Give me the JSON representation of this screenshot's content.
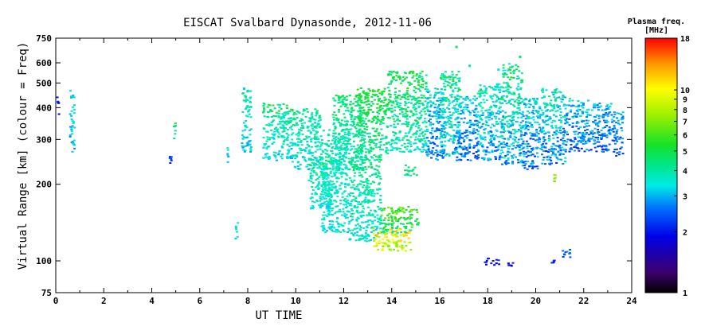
{
  "chart_data": {
    "type": "scatter",
    "title": "EISCAT Svalbard Dynasonde, 2012-11-06",
    "xlabel": "UT TIME",
    "ylabel": "Virtual Range [km] (colour = Freq)",
    "xlim": [
      0,
      24
    ],
    "ylim": [
      75,
      750
    ],
    "yscale": "log",
    "xticks": [
      "0",
      "2",
      "4",
      "6",
      "8",
      "10",
      "12",
      "14",
      "16",
      "18",
      "20",
      "22",
      "24"
    ],
    "yticks": [
      "75",
      "100",
      "200",
      "300",
      "400",
      "500",
      "600",
      "750"
    ],
    "colorbar": {
      "title_line1": "Plasma freq.",
      "title_line2": "[MHz]",
      "scale": "log",
      "range": [
        1,
        18
      ],
      "ticks": [
        "1",
        "2",
        "3",
        "4",
        "5",
        "6",
        "7",
        "8",
        "9",
        "10",
        "18"
      ]
    },
    "clusters": [
      {
        "t0": 0.02,
        "t1": 0.1,
        "r0": 360,
        "r1": 450,
        "f0": 1.7,
        "f1": 2.3
      },
      {
        "t0": 0.55,
        "t1": 0.75,
        "r0": 270,
        "r1": 470,
        "f0": 2.5,
        "f1": 4.0
      },
      {
        "t0": 4.7,
        "t1": 4.8,
        "r0": 240,
        "r1": 260,
        "f0": 1.9,
        "f1": 2.6
      },
      {
        "t0": 4.85,
        "t1": 4.95,
        "r0": 290,
        "r1": 360,
        "f0": 3.5,
        "f1": 5.5
      },
      {
        "t0": 7.1,
        "t1": 7.15,
        "r0": 240,
        "r1": 280,
        "f0": 2.8,
        "f1": 3.5
      },
      {
        "t0": 7.45,
        "t1": 7.55,
        "r0": 115,
        "r1": 145,
        "f0": 2.8,
        "f1": 3.8
      },
      {
        "t0": 7.7,
        "t1": 8.1,
        "r0": 270,
        "r1": 480,
        "f0": 2.8,
        "f1": 4.5
      },
      {
        "t0": 8.6,
        "t1": 9.8,
        "r0": 250,
        "r1": 420,
        "f0": 2.8,
        "f1": 5.2
      },
      {
        "t0": 9.8,
        "t1": 11.0,
        "r0": 230,
        "r1": 400,
        "f0": 2.8,
        "f1": 5.0
      },
      {
        "t0": 10.5,
        "t1": 11.5,
        "r0": 160,
        "r1": 260,
        "f0": 3.0,
        "f1": 4.8
      },
      {
        "t0": 11.0,
        "t1": 12.2,
        "r0": 130,
        "r1": 330,
        "f0": 3.0,
        "f1": 4.5
      },
      {
        "t0": 11.5,
        "t1": 12.8,
        "r0": 230,
        "r1": 450,
        "f0": 3.0,
        "f1": 5.5
      },
      {
        "t0": 12.2,
        "t1": 13.5,
        "r0": 120,
        "r1": 260,
        "f0": 3.0,
        "f1": 5.0
      },
      {
        "t0": 12.5,
        "t1": 13.8,
        "r0": 250,
        "r1": 480,
        "f0": 3.5,
        "f1": 6.0
      },
      {
        "t0": 13.2,
        "t1": 14.8,
        "r0": 110,
        "r1": 135,
        "f0": 6.0,
        "f1": 14.0
      },
      {
        "t0": 13.5,
        "t1": 15.1,
        "r0": 130,
        "r1": 165,
        "f0": 3.5,
        "f1": 8.0
      },
      {
        "t0": 13.8,
        "t1": 15.4,
        "r0": 270,
        "r1": 560,
        "f0": 3.0,
        "f1": 6.0
      },
      {
        "t0": 14.5,
        "t1": 15.0,
        "r0": 215,
        "r1": 240,
        "f0": 3.5,
        "f1": 5.5
      },
      {
        "t0": 15.4,
        "t1": 16.2,
        "r0": 250,
        "r1": 480,
        "f0": 2.0,
        "f1": 4.5
      },
      {
        "t0": 16.0,
        "t1": 16.8,
        "r0": 260,
        "r1": 560,
        "f0": 2.5,
        "f1": 5.5
      },
      {
        "t0": 16.6,
        "t1": 17.5,
        "r0": 250,
        "r1": 450,
        "f0": 2.0,
        "f1": 4.0
      },
      {
        "t0": 17.5,
        "t1": 18.5,
        "r0": 250,
        "r1": 500,
        "f0": 2.2,
        "f1": 4.8
      },
      {
        "t0": 18.5,
        "t1": 19.4,
        "r0": 240,
        "r1": 600,
        "f0": 2.2,
        "f1": 5.8
      },
      {
        "t0": 19.4,
        "t1": 20.2,
        "r0": 230,
        "r1": 440,
        "f0": 2.0,
        "f1": 4.5
      },
      {
        "t0": 20.2,
        "t1": 21.2,
        "r0": 240,
        "r1": 480,
        "f0": 2.0,
        "f1": 4.8
      },
      {
        "t0": 21.2,
        "t1": 22.2,
        "r0": 270,
        "r1": 440,
        "f0": 2.0,
        "f1": 4.2
      },
      {
        "t0": 22.2,
        "t1": 23.2,
        "r0": 270,
        "r1": 420,
        "f0": 2.0,
        "f1": 3.8
      },
      {
        "t0": 23.2,
        "t1": 23.6,
        "r0": 260,
        "r1": 390,
        "f0": 2.0,
        "f1": 3.5
      },
      {
        "t0": 17.8,
        "t1": 18.5,
        "r0": 97,
        "r1": 103,
        "f0": 1.8,
        "f1": 2.2
      },
      {
        "t0": 18.8,
        "t1": 19.1,
        "r0": 95,
        "r1": 99,
        "f0": 1.8,
        "f1": 2.1
      },
      {
        "t0": 20.6,
        "t1": 20.8,
        "r0": 98,
        "r1": 102,
        "f0": 1.9,
        "f1": 2.3
      },
      {
        "t0": 21.0,
        "t1": 21.4,
        "r0": 104,
        "r1": 113,
        "f0": 2.2,
        "f1": 2.8
      },
      {
        "t0": 20.7,
        "t1": 20.8,
        "r0": 205,
        "r1": 220,
        "f0": 6.5,
        "f1": 8.0
      }
    ],
    "isolated_points": [
      {
        "t": 16.65,
        "r": 700,
        "f": 4.5
      },
      {
        "t": 7.8,
        "r": 480,
        "f": 3.2
      },
      {
        "t": 17.2,
        "r": 590,
        "f": 3.8
      },
      {
        "t": 19.3,
        "r": 640,
        "f": 4.5
      },
      {
        "t": 18.4,
        "r": 570,
        "f": 3.5
      }
    ]
  }
}
